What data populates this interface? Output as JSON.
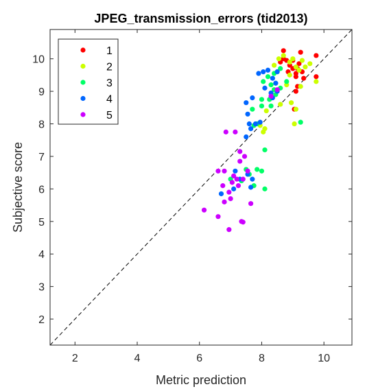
{
  "chart_data": {
    "type": "scatter",
    "title": "JPEG_transmission_errors (tid2013)",
    "xlabel": "Metric prediction",
    "ylabel": "Subjective score",
    "xlim": [
      1.2,
      10.9
    ],
    "ylim": [
      1.2,
      10.9
    ],
    "xticks": [
      2,
      4,
      6,
      8,
      10
    ],
    "yticks": [
      2,
      3,
      4,
      5,
      6,
      7,
      8,
      9,
      10
    ],
    "grid": false,
    "diagonal_reference_line": true,
    "legend_position": "top-left",
    "series": [
      {
        "name": "1",
        "color": "#ff0000",
        "points": [
          [
            8.6,
            9.9
          ],
          [
            8.7,
            10.25
          ],
          [
            8.8,
            9.95
          ],
          [
            8.9,
            9.8
          ],
          [
            9.0,
            9.7
          ],
          [
            9.1,
            9.55
          ],
          [
            9.15,
            9.7
          ],
          [
            9.2,
            9.85
          ],
          [
            9.3,
            9.6
          ],
          [
            9.25,
            10.2
          ],
          [
            9.75,
            10.1
          ],
          [
            9.75,
            9.45
          ],
          [
            9.15,
            9.15
          ],
          [
            9.1,
            9.0
          ],
          [
            9.05,
            8.45
          ],
          [
            8.85,
            9.6
          ],
          [
            9.0,
            9.95
          ],
          [
            8.7,
            10.0
          ],
          [
            9.35,
            9.4
          ],
          [
            9.1,
            9.45
          ]
        ]
      },
      {
        "name": "2",
        "color": "#ccff00",
        "points": [
          [
            8.55,
            10.0
          ],
          [
            8.7,
            10.1
          ],
          [
            8.9,
            9.9
          ],
          [
            9.0,
            10.0
          ],
          [
            9.1,
            9.75
          ],
          [
            9.2,
            9.65
          ],
          [
            9.4,
            9.75
          ],
          [
            9.55,
            9.85
          ],
          [
            9.75,
            9.3
          ],
          [
            9.3,
            9.95
          ],
          [
            8.9,
            9.5
          ],
          [
            8.5,
            9.6
          ],
          [
            8.4,
            9.8
          ],
          [
            8.8,
            9.2
          ],
          [
            8.95,
            8.65
          ],
          [
            9.1,
            8.45
          ],
          [
            8.6,
            8.6
          ],
          [
            8.15,
            8.4
          ],
          [
            7.95,
            7.95
          ],
          [
            8.1,
            7.85
          ],
          [
            8.05,
            7.75
          ],
          [
            9.05,
            8.0
          ],
          [
            9.25,
            9.15
          ]
        ]
      },
      {
        "name": "3",
        "color": "#00ff66",
        "points": [
          [
            7.7,
            8.45
          ],
          [
            8.0,
            8.75
          ],
          [
            8.3,
            8.55
          ],
          [
            8.25,
            8.75
          ],
          [
            8.45,
            8.9
          ],
          [
            8.4,
            9.05
          ],
          [
            8.05,
            9.3
          ],
          [
            8.2,
            9.45
          ],
          [
            8.4,
            9.55
          ],
          [
            8.6,
            9.7
          ],
          [
            8.8,
            9.3
          ],
          [
            8.0,
            8.55
          ],
          [
            8.3,
            9.2
          ],
          [
            8.6,
            9.1
          ],
          [
            7.75,
            7.95
          ],
          [
            7.85,
            8.0
          ],
          [
            8.1,
            7.2
          ],
          [
            8.0,
            6.55
          ],
          [
            7.85,
            6.6
          ],
          [
            8.1,
            6.0
          ],
          [
            7.75,
            6.1
          ],
          [
            7.6,
            6.45
          ],
          [
            7.5,
            6.6
          ],
          [
            7.35,
            6.25
          ],
          [
            7.0,
            6.3
          ],
          [
            9.25,
            8.05
          ],
          [
            8.45,
            9.25
          ]
        ]
      },
      {
        "name": "4",
        "color": "#0066ff",
        "points": [
          [
            7.9,
            9.55
          ],
          [
            8.05,
            9.6
          ],
          [
            8.2,
            9.65
          ],
          [
            8.35,
            9.4
          ],
          [
            8.45,
            9.25
          ],
          [
            8.5,
            9.0
          ],
          [
            8.3,
            8.95
          ],
          [
            8.1,
            9.1
          ],
          [
            7.5,
            8.65
          ],
          [
            7.7,
            8.8
          ],
          [
            7.55,
            8.3
          ],
          [
            7.6,
            8.0
          ],
          [
            7.8,
            8.0
          ],
          [
            7.95,
            8.05
          ],
          [
            7.65,
            7.85
          ],
          [
            7.5,
            7.6
          ],
          [
            7.15,
            6.55
          ],
          [
            7.55,
            6.45
          ],
          [
            7.7,
            6.3
          ],
          [
            7.65,
            6.05
          ],
          [
            6.7,
            5.85
          ],
          [
            7.1,
            6.0
          ],
          [
            7.3,
            6.3
          ],
          [
            8.35,
            8.8
          ],
          [
            8.5,
            9.6
          ]
        ]
      },
      {
        "name": "5",
        "color": "#cc00ff",
        "points": [
          [
            6.85,
            7.75
          ],
          [
            7.15,
            7.75
          ],
          [
            7.3,
            7.15
          ],
          [
            7.45,
            7.0
          ],
          [
            7.3,
            6.85
          ],
          [
            6.8,
            6.55
          ],
          [
            6.6,
            6.55
          ],
          [
            7.2,
            6.3
          ],
          [
            7.05,
            6.2
          ],
          [
            6.75,
            6.1
          ],
          [
            6.95,
            5.9
          ],
          [
            7.25,
            6.1
          ],
          [
            7.0,
            5.7
          ],
          [
            6.8,
            5.6
          ],
          [
            7.65,
            5.55
          ],
          [
            6.15,
            5.35
          ],
          [
            6.6,
            5.15
          ],
          [
            7.35,
            5.0
          ],
          [
            7.4,
            4.98
          ],
          [
            6.95,
            4.75
          ],
          [
            8.3,
            8.85
          ],
          [
            8.5,
            9.05
          ],
          [
            7.55,
            6.55
          ],
          [
            7.4,
            6.3
          ],
          [
            7.1,
            6.4
          ]
        ]
      }
    ]
  }
}
